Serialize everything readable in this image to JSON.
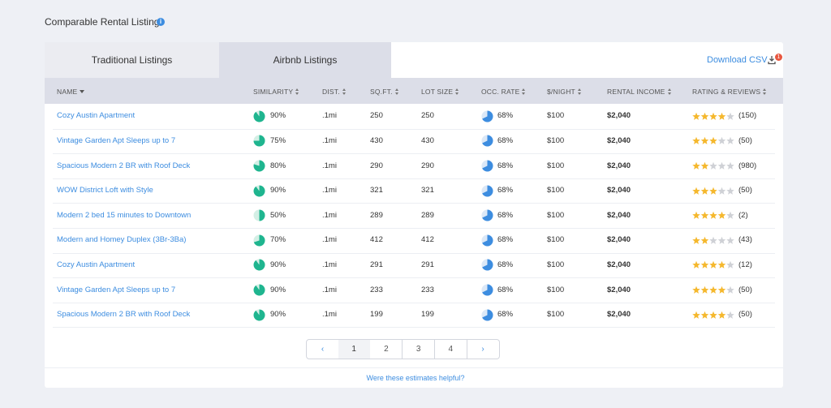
{
  "header": {
    "title": "Comparable Rental Listings"
  },
  "tabs": [
    "Traditional Listings",
    "Airbnb Listings"
  ],
  "download": {
    "label": "Download CSV",
    "badge": "1"
  },
  "table": {
    "columns": [
      "NAME",
      "SIMILARITY",
      "DIST.",
      "SQ.FT.",
      "LOT SIZE",
      "OCC. RATE",
      "$/NIGHT",
      "RENTAL INCOME",
      "RATING & REVIEWS"
    ],
    "rows": [
      {
        "name": "Cozy Austin Apartment",
        "similarity": {
          "value": 90,
          "label": "90%"
        },
        "distance": ".1mi",
        "sqft": 250,
        "lot_size": 250,
        "occupancy": {
          "value": 68,
          "label": "68%"
        },
        "nightly": "$100",
        "rental_income": "$2,040",
        "rating": 4,
        "reviews": "(150)"
      },
      {
        "name": "Vintage Garden Apt Sleeps up to 7",
        "similarity": {
          "value": 75,
          "label": "75%"
        },
        "distance": ".1mi",
        "sqft": 430,
        "lot_size": 430,
        "occupancy": {
          "value": 68,
          "label": "68%"
        },
        "nightly": "$100",
        "rental_income": "$2,040",
        "rating": 3,
        "reviews": "(50)"
      },
      {
        "name": "Spacious Modern 2 BR with Roof Deck",
        "similarity": {
          "value": 80,
          "label": "80%"
        },
        "distance": ".1mi",
        "sqft": 290,
        "lot_size": 290,
        "occupancy": {
          "value": 68,
          "label": "68%"
        },
        "nightly": "$100",
        "rental_income": "$2,040",
        "rating": 2,
        "reviews": "(980)"
      },
      {
        "name": "WOW District Loft with Style",
        "similarity": {
          "value": 90,
          "label": "90%"
        },
        "distance": ".1mi",
        "sqft": 321,
        "lot_size": 321,
        "occupancy": {
          "value": 68,
          "label": "68%"
        },
        "nightly": "$100",
        "rental_income": "$2,040",
        "rating": 3,
        "reviews": "(50)"
      },
      {
        "name": "Modern 2 bed 15 minutes to Downtown",
        "similarity": {
          "value": 50,
          "label": "50%"
        },
        "distance": ".1mi",
        "sqft": 289,
        "lot_size": 289,
        "occupancy": {
          "value": 68,
          "label": "68%"
        },
        "nightly": "$100",
        "rental_income": "$2,040",
        "rating": 4,
        "reviews": "(2)"
      },
      {
        "name": "Modern and Homey Duplex (3Br-3Ba)",
        "similarity": {
          "value": 70,
          "label": "70%"
        },
        "distance": ".1mi",
        "sqft": 412,
        "lot_size": 412,
        "occupancy": {
          "value": 68,
          "label": "68%"
        },
        "nightly": "$100",
        "rental_income": "$2,040",
        "rating": 2,
        "reviews": "(43)"
      },
      {
        "name": "Cozy Austin Apartment",
        "similarity": {
          "value": 90,
          "label": "90%"
        },
        "distance": ".1mi",
        "sqft": 291,
        "lot_size": 291,
        "occupancy": {
          "value": 68,
          "label": "68%"
        },
        "nightly": "$100",
        "rental_income": "$2,040",
        "rating": 4,
        "reviews": "(12)"
      },
      {
        "name": "Vintage Garden Apt Sleeps up to 7",
        "similarity": {
          "value": 90,
          "label": "90%"
        },
        "distance": ".1mi",
        "sqft": 233,
        "lot_size": 233,
        "occupancy": {
          "value": 68,
          "label": "68%"
        },
        "nightly": "$100",
        "rental_income": "$2,040",
        "rating": 4,
        "reviews": "(50)"
      },
      {
        "name": "Spacious Modern 2 BR with Roof Deck",
        "similarity": {
          "value": 90,
          "label": "90%"
        },
        "distance": ".1mi",
        "sqft": 199,
        "lot_size": 199,
        "occupancy": {
          "value": 68,
          "label": "68%"
        },
        "nightly": "$100",
        "rental_income": "$2,040",
        "rating": 4,
        "reviews": "(50)"
      }
    ]
  },
  "pagination": [
    "‹",
    "1",
    "2",
    "3",
    "4",
    "›"
  ],
  "footer": "Were these estimates helpful?"
}
